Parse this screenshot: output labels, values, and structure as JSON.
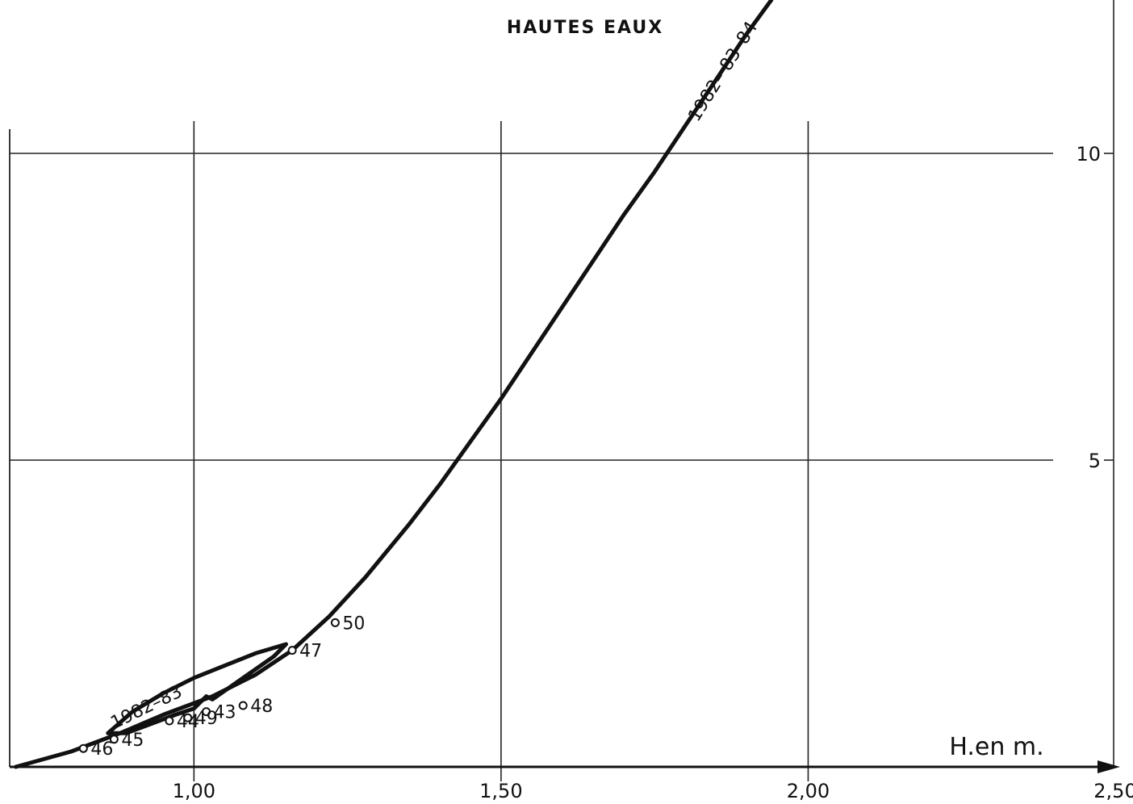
{
  "chart_data": {
    "type": "line",
    "title": "HAUTES EAUX",
    "xlabel": "H.en m.",
    "ylabel": "",
    "xlim": [
      0.7,
      2.5
    ],
    "ylim": [
      0,
      12.5
    ],
    "x_ticks": [
      {
        "value": 1.0,
        "label": "1,00"
      },
      {
        "value": 1.5,
        "label": "1,50"
      },
      {
        "value": 2.0,
        "label": "2,00"
      },
      {
        "value": 2.5,
        "label": "2,50"
      }
    ],
    "y_ticks": [
      {
        "value": 5,
        "label": "5"
      },
      {
        "value": 10,
        "label": "10"
      }
    ],
    "grid": true,
    "series": [
      {
        "name": "1982-83-84",
        "x": [
          0.71,
          0.8,
          0.88,
          0.95,
          1.03,
          1.1,
          1.16,
          1.22,
          1.28,
          1.35,
          1.4,
          1.45,
          1.5,
          1.55,
          1.6,
          1.65,
          1.7,
          1.75,
          1.8,
          1.85,
          1.9,
          1.94
        ],
        "y": [
          0.0,
          0.25,
          0.55,
          0.85,
          1.15,
          1.5,
          1.9,
          2.45,
          3.1,
          3.95,
          4.6,
          5.3,
          6.0,
          6.75,
          7.5,
          8.25,
          9.0,
          9.7,
          10.45,
          11.2,
          11.95,
          12.5
        ]
      },
      {
        "name": "1982-83",
        "x": [
          0.86,
          0.9,
          0.95,
          1.0,
          1.05,
          1.1,
          1.15,
          1.13,
          1.08,
          1.03,
          1.02,
          1.0,
          0.97,
          0.93,
          0.89,
          0.86
        ],
        "y": [
          0.55,
          0.9,
          1.2,
          1.45,
          1.65,
          1.85,
          2.0,
          1.8,
          1.45,
          1.1,
          1.15,
          0.95,
          0.85,
          0.7,
          0.55,
          0.55
        ]
      }
    ],
    "points": [
      {
        "label": "43",
        "x": 1.02,
        "y": 0.9
      },
      {
        "label": "44",
        "x": 0.96,
        "y": 0.75
      },
      {
        "label": "45",
        "x": 0.87,
        "y": 0.45
      },
      {
        "label": "46",
        "x": 0.82,
        "y": 0.3
      },
      {
        "label": "47",
        "x": 1.16,
        "y": 1.9
      },
      {
        "label": "48",
        "x": 1.08,
        "y": 1.0
      },
      {
        "label": "49",
        "x": 0.99,
        "y": 0.8
      },
      {
        "label": "50",
        "x": 1.23,
        "y": 2.35
      }
    ]
  }
}
